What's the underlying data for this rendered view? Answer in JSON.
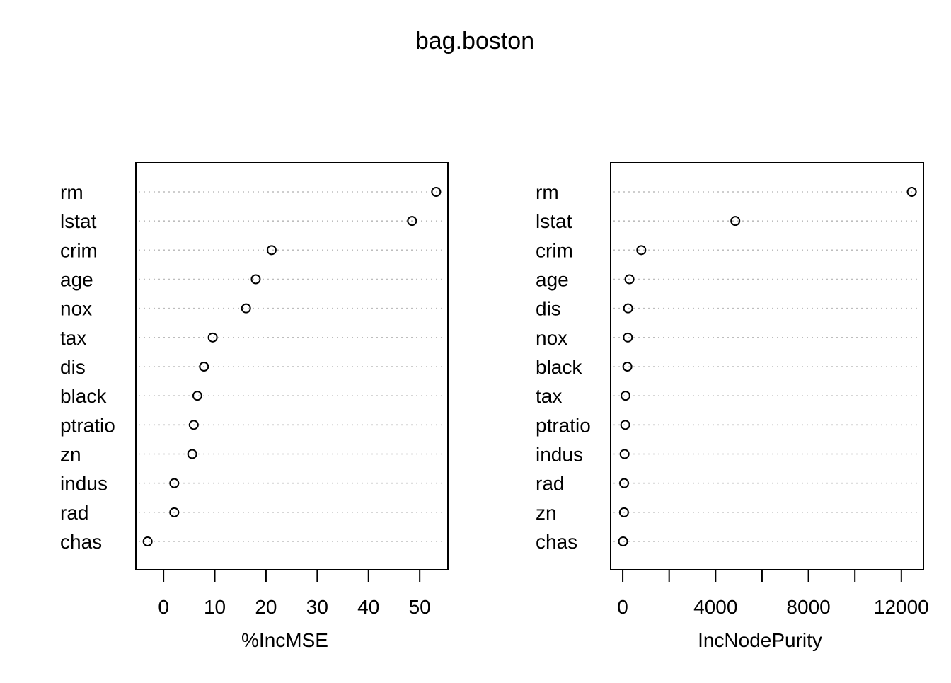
{
  "title": "bag.boston",
  "chart_data": [
    {
      "type": "scatter",
      "title": "",
      "xlabel": "%IncMSE",
      "ylabel": "",
      "categories": [
        "rm",
        "lstat",
        "crim",
        "age",
        "nox",
        "tax",
        "dis",
        "black",
        "ptratio",
        "zn",
        "indus",
        "rad",
        "chas"
      ],
      "values": [
        53.2,
        48.5,
        21.1,
        18.0,
        16.1,
        9.6,
        7.9,
        6.6,
        5.9,
        5.6,
        2.1,
        2.1,
        -3.1
      ],
      "xlim": [
        -5.4,
        55.5
      ],
      "xticks": [
        0,
        10,
        20,
        30,
        40,
        50
      ],
      "xtick_labels": [
        "0",
        "10",
        "20",
        "30",
        "40",
        "50"
      ],
      "grid": "dotted horizontal"
    },
    {
      "type": "scatter",
      "title": "",
      "xlabel": "IncNodePurity",
      "ylabel": "",
      "categories": [
        "rm",
        "lstat",
        "crim",
        "age",
        "dis",
        "nox",
        "black",
        "tax",
        "ptratio",
        "indus",
        "rad",
        "zn",
        "chas"
      ],
      "values": [
        12450,
        4850,
        800,
        290,
        230,
        220,
        200,
        120,
        110,
        80,
        60,
        55,
        15
      ],
      "xlim": [
        -520,
        12950
      ],
      "xticks": [
        0,
        2000,
        4000,
        6000,
        8000,
        10000,
        12000
      ],
      "xtick_labels": [
        "0",
        "",
        "4000",
        "",
        "8000",
        "",
        "12000"
      ],
      "grid": "dotted horizontal"
    }
  ]
}
